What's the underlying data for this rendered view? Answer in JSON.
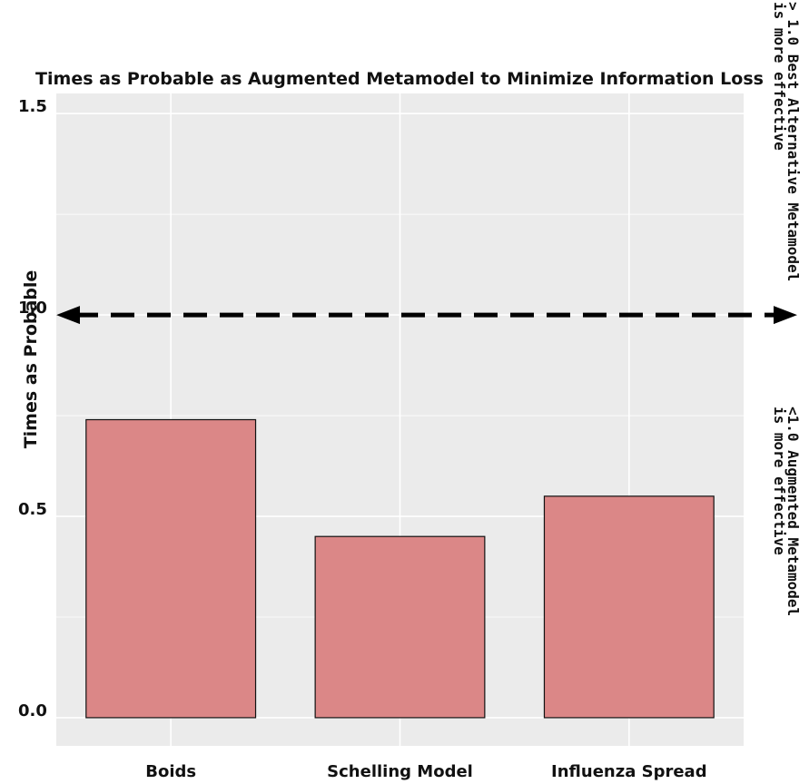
{
  "chart_data": {
    "type": "bar",
    "title": "Times as Probable as Augmented Metamodel to Minimize Information Loss",
    "xlabel": "",
    "ylabel": "Times as Probable",
    "categories": [
      "Boids",
      "Schelling Model",
      "Influenza Spread"
    ],
    "values": [
      0.74,
      0.45,
      0.55
    ],
    "ylim": [
      -0.07,
      1.55
    ],
    "yticks": [
      {
        "value": 0.0,
        "label": "0.0"
      },
      {
        "value": 0.5,
        "label": "0.5"
      },
      {
        "value": 1.0,
        "label": "1.0"
      },
      {
        "value": 1.5,
        "label": "1.5"
      }
    ],
    "grid": true,
    "reference_line": {
      "value": 1.0,
      "style": "dashed",
      "arrows": "both"
    },
    "annotations": {
      "above": [
        "> 1.0 Best Alternative Metamodel",
        "is more effective"
      ],
      "below": [
        "<1.0 Augmented Metamodel",
        "is more effective"
      ]
    },
    "colors": {
      "bar_fill": "#DB8787",
      "bar_stroke": "#111111",
      "panel_bg": "#EBEBEB",
      "grid": "#FFFFFF",
      "reference_line": "#000000"
    }
  }
}
